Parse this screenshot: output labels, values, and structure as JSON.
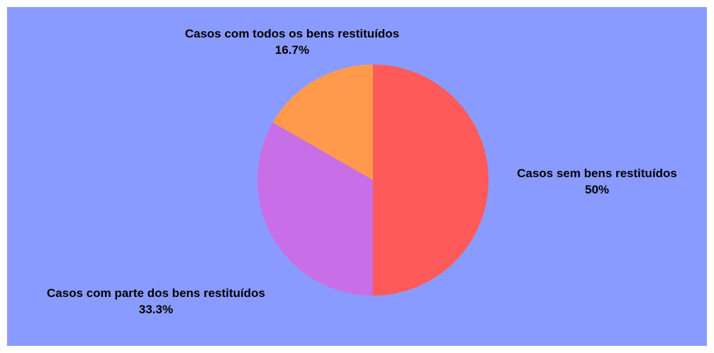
{
  "chart_data": {
    "type": "pie",
    "background_color": "#8a9bff",
    "slices": [
      {
        "label": "Casos sem bens restituídos",
        "value": 50,
        "value_label": "50%",
        "color": "#ff5a5a"
      },
      {
        "label": "Casos com parte dos bens restituídos",
        "value": 33.3,
        "value_label": "33.3%",
        "color": "#c86ee6"
      },
      {
        "label": "Casos com todos os bens restituídos",
        "value": 16.7,
        "value_label": "16.7%",
        "color": "#ff9a4d"
      }
    ]
  }
}
